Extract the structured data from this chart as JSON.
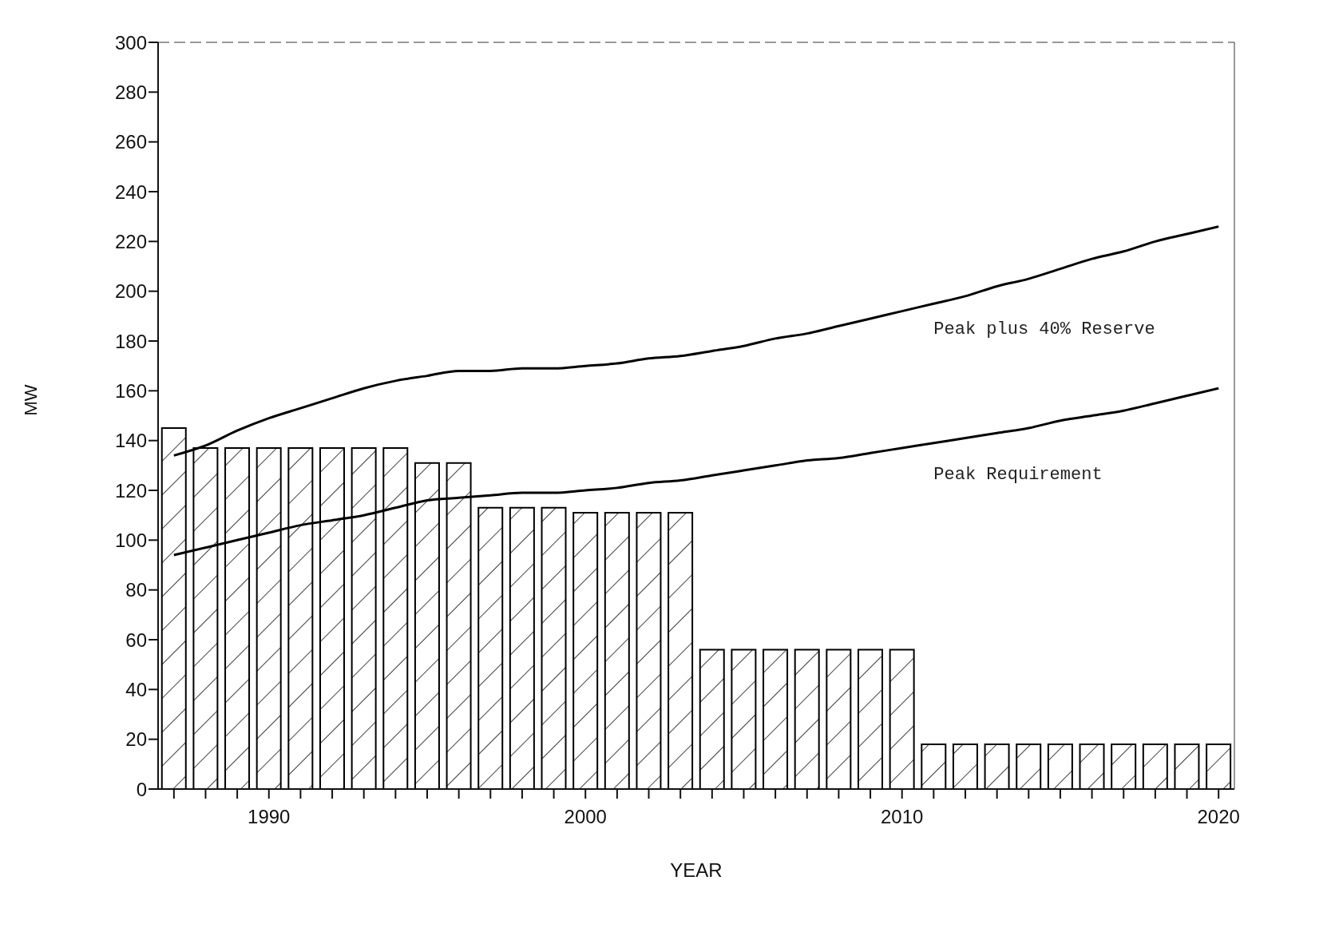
{
  "chart_data": {
    "type": "bar",
    "xlabel": "YEAR",
    "ylabel": "MW",
    "categories": [
      null,
      null,
      null,
      "1990",
      null,
      null,
      null,
      null,
      null,
      null,
      null,
      null,
      null,
      "2000",
      null,
      null,
      null,
      null,
      null,
      null,
      null,
      null,
      null,
      "2010",
      null,
      null,
      null,
      null,
      null,
      null,
      null,
      null,
      null,
      "2020"
    ],
    "series": [
      {
        "color": "#000000",
        "values": [
          145,
          137,
          137,
          137,
          137,
          137,
          137,
          137,
          131,
          131,
          113,
          113,
          113,
          111,
          111,
          111,
          111,
          56,
          56,
          56,
          56,
          56,
          56,
          56,
          18,
          18,
          18,
          18,
          18,
          18,
          18,
          18,
          18,
          18
        ]
      },
      {
        "type": "line",
        "name": "Peak plus 40% Reserve",
        "color": "#000000",
        "values": [
          134,
          138,
          144,
          149,
          153,
          157,
          161,
          164,
          166,
          168,
          168,
          169,
          169,
          170,
          171,
          173,
          174,
          176,
          178,
          181,
          183,
          186,
          189,
          192,
          195,
          198,
          202,
          205,
          209,
          213,
          216,
          220,
          223,
          226
        ]
      },
      {
        "type": "line",
        "name": "Peak Requirement",
        "color": "#000000",
        "values": [
          94,
          97,
          100,
          103,
          106,
          108,
          110,
          113,
          116,
          117,
          118,
          119,
          119,
          120,
          121,
          123,
          124,
          126,
          128,
          130,
          132,
          133,
          135,
          137,
          139,
          141,
          143,
          145,
          148,
          150,
          152,
          155,
          158,
          161
        ]
      }
    ],
    "ylim": [
      0,
      300
    ],
    "yticks": [
      0,
      20,
      40,
      60,
      80,
      100,
      120,
      140,
      160,
      180,
      200,
      220,
      240,
      260,
      280,
      300
    ],
    "grid": false,
    "marker": "none",
    "line_style": "solid"
  }
}
